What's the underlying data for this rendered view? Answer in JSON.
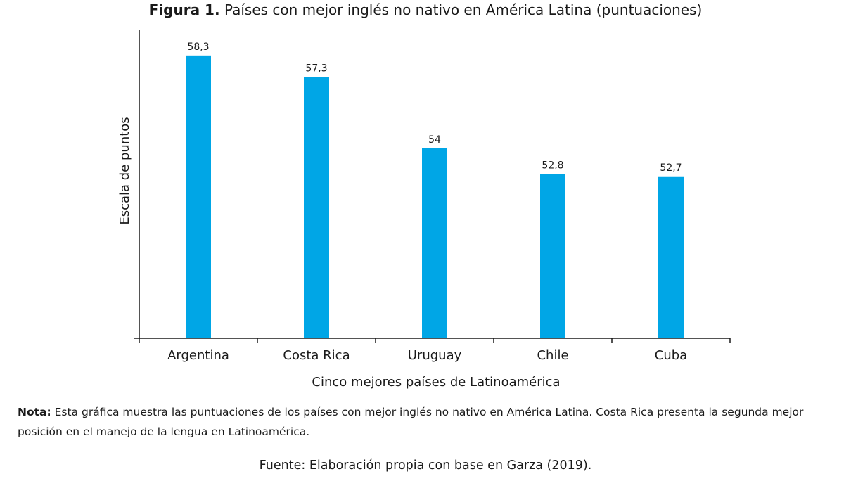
{
  "figure": {
    "label": "Figura 1.",
    "caption": "Países con mejor inglés no nativo en América Latina (puntuaciones)"
  },
  "chart_data": {
    "type": "bar",
    "title": "Figura 1. Países con mejor inglés no nativo en América Latina (puntuaciones)",
    "xlabel": "Cinco mejores países de Latinoamérica",
    "ylabel": "Escala de puntos",
    "categories": [
      "Argentina",
      "Costa Rica",
      "Uruguay",
      "Chile",
      "Cuba"
    ],
    "values": [
      58.3,
      57.3,
      54,
      52.8,
      52.7
    ],
    "value_labels": [
      "58,3",
      "57,3",
      "54",
      "52,8",
      "52,7"
    ],
    "ylim": [
      45.2,
      59.5
    ],
    "bar_color": "#00a6e6",
    "grid": false,
    "legend": "none"
  },
  "note": {
    "label": "Nota:",
    "text": "Esta gráfica muestra las puntuaciones de los países con mejor inglés no nativo en América Latina. Costa Rica presenta la segunda mejor posición en el manejo de la lengua en Latinoamérica."
  },
  "source": "Fuente: Elaboración propia con base en Garza (2019)."
}
